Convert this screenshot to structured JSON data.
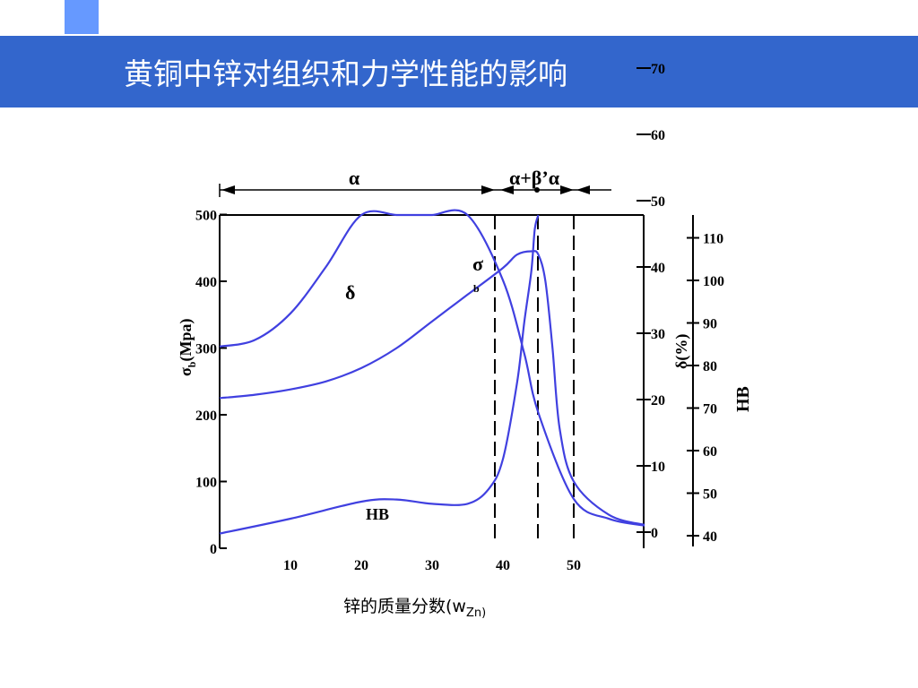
{
  "slide": {
    "title": "黄铜中锌对组织和力学性能的影响",
    "x_axis_label": "锌的质量分数(w",
    "x_axis_label_sub": "Zn)"
  },
  "colors": {
    "title_bar": "#3366cc",
    "deco_squares": [
      "#6699ff",
      "#99bbff",
      "#cfdcf5"
    ],
    "curve": "#4040e0"
  },
  "chart_data": {
    "type": "line",
    "phase_regions": [
      {
        "label": "α",
        "from": 0,
        "to": 39
      },
      {
        "label": "α+β’α",
        "from": 39,
        "to": 50
      }
    ],
    "phase_boundaries": [
      39,
      45,
      50
    ],
    "x_ticks": [
      10,
      20,
      30,
      40,
      50
    ],
    "xlim": [
      0,
      60
    ],
    "left_axis": {
      "label_main": "σ",
      "label_sub": "b",
      "label_rest": "(Mpa)",
      "ticks": [
        0,
        100,
        200,
        300,
        400,
        500
      ],
      "range": [
        0,
        500
      ]
    },
    "delta_axis": {
      "label": "δ(%)",
      "ticks": [
        0,
        10,
        20,
        30,
        40,
        50,
        60,
        70
      ],
      "range": [
        0,
        70
      ]
    },
    "hb_axis": {
      "label": "HB",
      "ticks": [
        40,
        50,
        60,
        70,
        80,
        90,
        100,
        110
      ],
      "range": [
        40,
        110
      ]
    },
    "series": [
      {
        "name": "δ",
        "axis": "delta",
        "x": [
          0,
          5,
          10,
          15,
          20,
          25,
          28,
          30,
          35,
          40,
          43,
          45,
          50,
          55,
          60
        ],
        "y": [
          28,
          29,
          33,
          40,
          50,
          59,
          61,
          60,
          51,
          38,
          27,
          18,
          5,
          2,
          1
        ]
      },
      {
        "name": "σb",
        "axis": "sigma",
        "x": [
          0,
          5,
          10,
          15,
          20,
          25,
          30,
          35,
          40,
          42,
          44,
          45,
          46,
          47,
          48,
          50,
          55,
          60
        ],
        "y": [
          225,
          230,
          238,
          250,
          270,
          300,
          340,
          380,
          420,
          440,
          445,
          440,
          400,
          300,
          180,
          100,
          50,
          35
        ]
      },
      {
        "name": "HB",
        "axis": "hb",
        "x": [
          0,
          10,
          20,
          25,
          30,
          35,
          38,
          40,
          42,
          43,
          44,
          44.5,
          45
        ],
        "y": [
          40.5,
          44,
          48,
          48.5,
          47.5,
          47.5,
          51,
          58,
          76,
          90,
          102,
          112,
          117
        ]
      }
    ],
    "curve_labels": [
      "δ",
      "σ",
      "b",
      "HB"
    ]
  }
}
